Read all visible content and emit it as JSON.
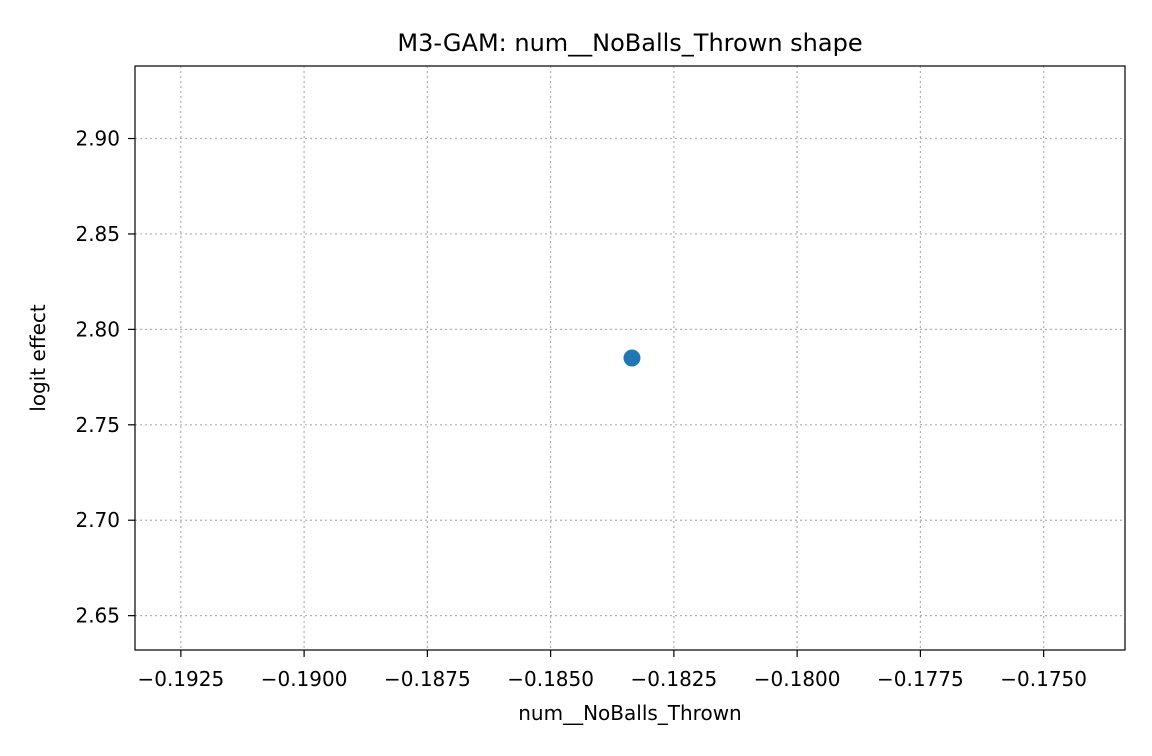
{
  "chart_data": {
    "type": "scatter",
    "title": "M3-GAM: num__NoBalls_Thrown shape",
    "xlabel": "num__NoBalls_Thrown",
    "ylabel": "logit effect",
    "xlim": [
      -0.19343,
      -0.17335
    ],
    "ylim": [
      2.632,
      2.938
    ],
    "x_ticks": [
      -0.1925,
      -0.19,
      -0.1875,
      -0.185,
      -0.1825,
      -0.18,
      -0.1775,
      -0.175
    ],
    "x_tick_labels": [
      "−0.1925",
      "−0.1900",
      "−0.1875",
      "−0.1850",
      "−0.1825",
      "−0.1800",
      "−0.1775",
      "−0.1750"
    ],
    "y_ticks": [
      2.65,
      2.7,
      2.75,
      2.8,
      2.85,
      2.9
    ],
    "y_tick_labels": [
      "2.65",
      "2.70",
      "2.75",
      "2.80",
      "2.85",
      "2.90"
    ],
    "grid": true,
    "series": [
      {
        "color": "#1f77b4",
        "points": [
          {
            "x": -0.18335,
            "y": 2.785
          }
        ]
      }
    ]
  }
}
